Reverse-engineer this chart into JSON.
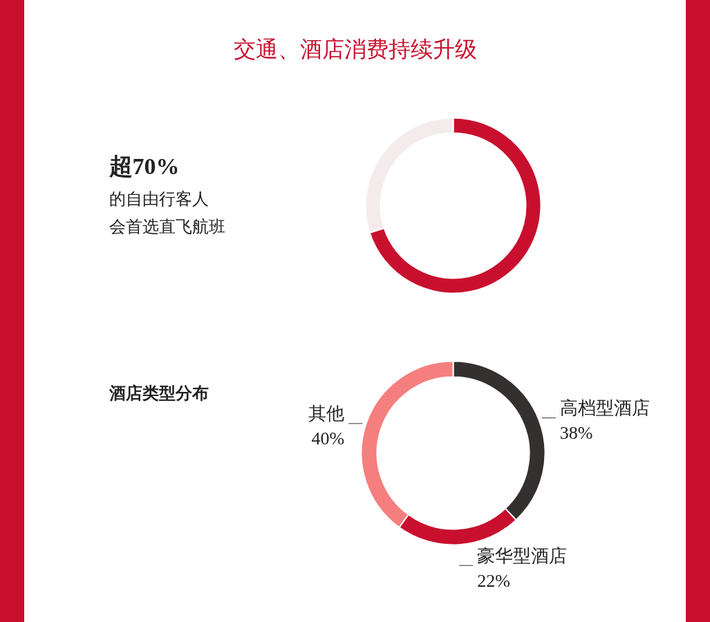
{
  "chart_data": [
    {
      "type": "donut",
      "title": "交通、酒店消费持续升级",
      "categories": [
        null,
        null
      ],
      "values": [
        70,
        30
      ],
      "colors": [
        "#c8102e",
        "#f4ecec"
      ],
      "annotations": [
        "超70%",
        "的自由行客人",
        "会首选直飞航班"
      ]
    },
    {
      "type": "donut",
      "title": "酒店类型分布",
      "categories": [
        "高档型酒店",
        "豪华型酒店",
        "其他"
      ],
      "values": [
        38,
        22,
        40
      ],
      "colors": [
        "#353030",
        "#c8102e",
        "#f57f7f"
      ],
      "value_labels": [
        "38%",
        "22%",
        "40%"
      ]
    }
  ]
}
